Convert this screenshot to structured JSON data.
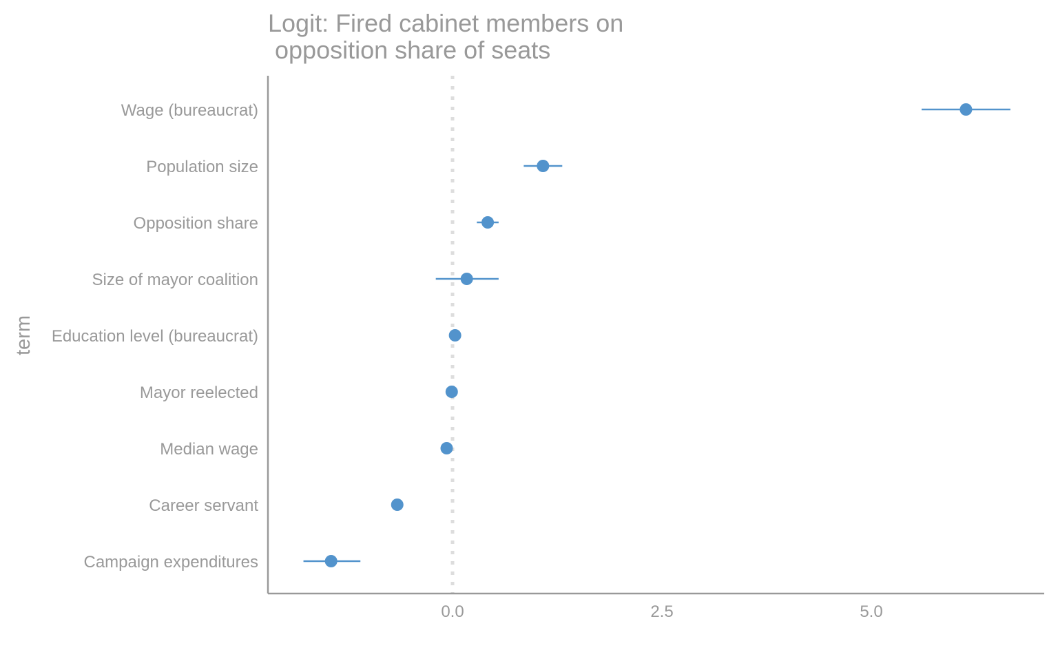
{
  "chart_data": {
    "type": "scatter",
    "subtype": "coefficient-plot",
    "title_lines": [
      "Logit: Fired cabinet members on",
      " opposition share of seats"
    ],
    "xlabel": "",
    "ylabel": "term",
    "xlim": [
      -2.2,
      7.1
    ],
    "xticks": [
      0.0,
      2.5,
      5.0
    ],
    "xtick_labels": [
      "0.0",
      "2.5",
      "5.0"
    ],
    "reference_line": 0,
    "grid": false,
    "legend": "none",
    "terms": [
      {
        "term": "Wage (bureaucrat)",
        "estimate": 6.13,
        "ci_low": 5.6,
        "ci_high": 6.66
      },
      {
        "term": "Population size",
        "estimate": 1.08,
        "ci_low": 0.85,
        "ci_high": 1.31
      },
      {
        "term": "Opposition share",
        "estimate": 0.42,
        "ci_low": 0.29,
        "ci_high": 0.55
      },
      {
        "term": "Size of mayor coalition",
        "estimate": 0.17,
        "ci_low": -0.2,
        "ci_high": 0.55
      },
      {
        "term": "Education level (bureaucrat)",
        "estimate": 0.03,
        "ci_low": 0.0,
        "ci_high": 0.06
      },
      {
        "term": "Mayor reelected",
        "estimate": -0.01,
        "ci_low": -0.04,
        "ci_high": 0.02
      },
      {
        "term": "Median wage",
        "estimate": -0.07,
        "ci_low": -0.11,
        "ci_high": -0.03
      },
      {
        "term": "Career servant",
        "estimate": -0.66,
        "ci_low": -0.71,
        "ci_high": -0.61
      },
      {
        "term": "Campaign expenditures",
        "estimate": -1.45,
        "ci_low": -1.78,
        "ci_high": -1.1
      }
    ]
  },
  "colors": {
    "point": "#5293cc",
    "text": "#999999",
    "axis": "#999999",
    "reference_line": "#dddddd"
  }
}
